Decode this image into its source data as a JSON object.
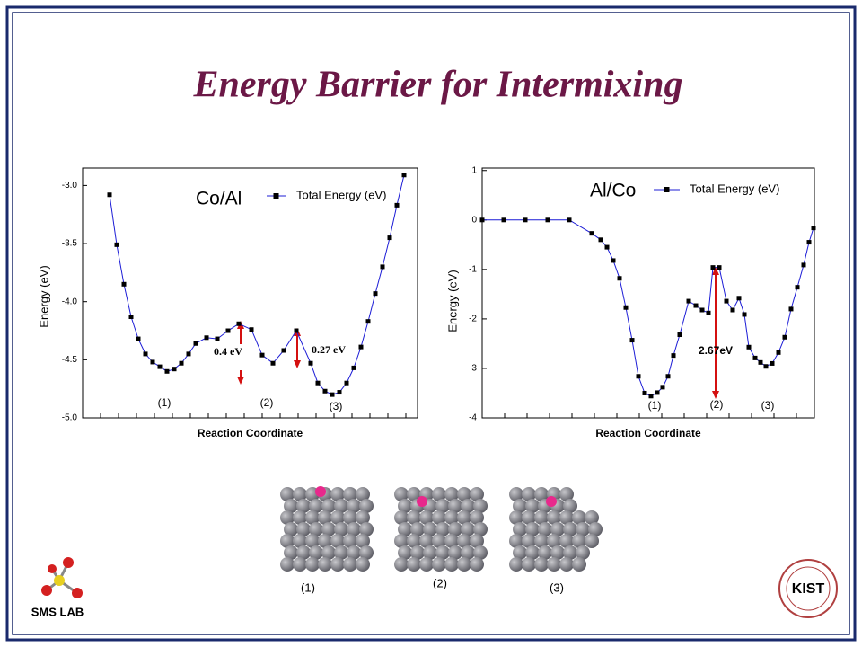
{
  "title": "Energy Barrier for Intermixing",
  "chart_data": [
    {
      "type": "line",
      "title": "Co/Al",
      "y_label": "Energy (eV)",
      "x_label": "Reaction Coordinate",
      "xlim": [
        0,
        37.3
      ],
      "xticks": [
        2,
        4,
        6,
        8,
        10,
        12,
        14,
        16,
        18,
        20,
        22,
        24,
        26,
        28,
        30,
        32,
        34,
        36
      ],
      "ylim": [
        -5,
        -2.85
      ],
      "yticks": [
        {
          "value": -5,
          "label": "-5.0"
        },
        -4.5,
        {
          "value": -4,
          "label": "-4.0"
        },
        -3.5,
        {
          "value": -3,
          "label": "-3.0"
        }
      ],
      "x": [
        3.0,
        3.8,
        4.6,
        5.4,
        6.2,
        7.0,
        7.8,
        8.6,
        9.4,
        10.2,
        11.0,
        11.8,
        12.6,
        13.8,
        15.0,
        16.2,
        17.4,
        18.8,
        20.0,
        21.2,
        22.4,
        23.8,
        25.4,
        26.2,
        27.0,
        27.8,
        28.6,
        29.4,
        30.2,
        31.0,
        31.8,
        32.6,
        33.4,
        34.2,
        35.0,
        35.8
      ],
      "series": [
        {
          "name": "Total Energy (eV)",
          "color": "#1c1cd6",
          "marker_color": "#000000",
          "values": [
            -3.08,
            -3.51,
            -3.85,
            -4.13,
            -4.32,
            -4.45,
            -4.52,
            -4.56,
            -4.6,
            -4.58,
            -4.53,
            -4.45,
            -4.36,
            -4.31,
            -4.32,
            -4.25,
            -4.19,
            -4.24,
            -4.46,
            -4.53,
            -4.42,
            -4.25,
            -4.53,
            -4.7,
            -4.77,
            -4.8,
            -4.78,
            -4.7,
            -4.57,
            -4.39,
            -4.17,
            -3.93,
            -3.7,
            -3.45,
            -3.17,
            -2.91
          ]
        }
      ],
      "annotations": [
        "0.4 eV",
        "0.27 eV",
        "(1)",
        "(2)",
        "(3)"
      ]
    },
    {
      "type": "line",
      "title": "Al/Co",
      "y_label": "Energy (eV)",
      "x_label": "Reaction Coordinate",
      "xlim": [
        0,
        37
      ],
      "xticks": [
        2.5,
        5,
        7.5,
        10,
        12.5,
        15,
        17.5,
        20,
        22.5,
        25,
        27.5,
        30,
        32.5,
        35
      ],
      "ylim": [
        -4,
        1.05
      ],
      "yticks": [
        -4,
        -3,
        -2,
        -1,
        0,
        1
      ],
      "x": [
        0,
        2.4,
        4.8,
        7.3,
        9.7,
        12.2,
        13.2,
        13.9,
        14.6,
        15.3,
        16.0,
        16.7,
        17.4,
        18.1,
        18.8,
        19.5,
        20.1,
        20.7,
        21.3,
        22.0,
        23.0,
        23.8,
        24.5,
        25.2,
        25.7,
        26.4,
        27.2,
        27.9,
        28.6,
        29.2,
        29.7,
        30.4,
        31.0,
        31.6,
        32.3,
        33.0,
        33.7,
        34.4,
        35.1,
        35.8,
        36.4,
        36.9
      ],
      "series": [
        {
          "name": "Total Energy (eV)",
          "color": "#1c1cd6",
          "marker_color": "#000000",
          "values": [
            0,
            0,
            0,
            0,
            0,
            -0.27,
            -0.4,
            -0.55,
            -0.82,
            -1.18,
            -1.77,
            -2.43,
            -3.16,
            -3.5,
            -3.56,
            -3.49,
            -3.38,
            -3.16,
            -2.74,
            -2.32,
            -1.64,
            -1.73,
            -1.82,
            -1.88,
            -0.96,
            -0.96,
            -1.64,
            -1.82,
            -1.58,
            -1.91,
            -2.57,
            -2.79,
            -2.88,
            -2.96,
            -2.9,
            -2.68,
            -2.37,
            -1.8,
            -1.36,
            -0.91,
            -0.45,
            -0.16
          ]
        }
      ],
      "annotations": [
        "2.67eV",
        "(1)",
        "(2)",
        "(3)"
      ]
    }
  ],
  "images": [
    "(1)",
    "(2)",
    "(3)"
  ],
  "logo": "SMS LAB",
  "logo_right": "KIST"
}
